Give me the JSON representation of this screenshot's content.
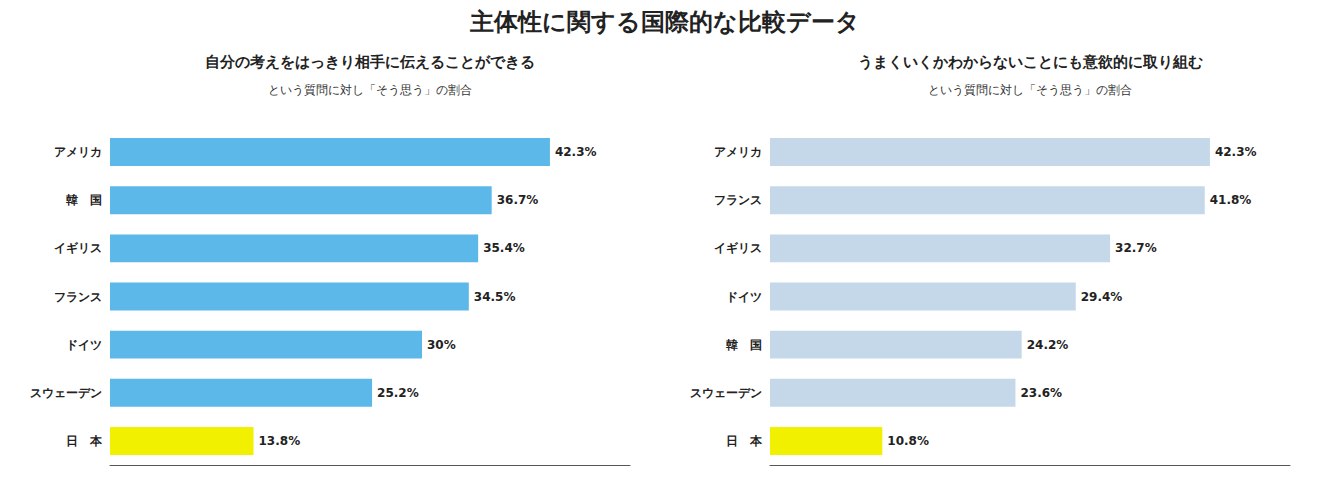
{
  "title": "主体性に関する国際的な比較データ",
  "chart_data": [
    {
      "type": "bar",
      "orientation": "horizontal",
      "title": "自分の考えをはっきり相手に伝えることができる",
      "subtitle": "という質問に対し「そう思う」の割合",
      "categories": [
        "アメリカ",
        "韓　国",
        "イギリス",
        "フランス",
        "ドイツ",
        "スウェーデン",
        "日　本"
      ],
      "values": [
        42.3,
        36.7,
        35.4,
        34.5,
        30.0,
        25.2,
        13.8
      ],
      "value_labels": [
        "42.3%",
        "36.7%",
        "35.4%",
        "34.5%",
        "30%",
        "25.2%",
        "13.8%"
      ],
      "colors": [
        "#5bb8e8",
        "#5bb8e8",
        "#5bb8e8",
        "#5bb8e8",
        "#5bb8e8",
        "#5bb8e8",
        "#f0f000"
      ],
      "data_labels": true,
      "xlim": [
        0,
        50
      ],
      "xticks": [],
      "tick_labels": "y",
      "grid": false
    },
    {
      "type": "bar",
      "orientation": "horizontal",
      "title": "うまくいくかわからないことにも意欲的に取り組む",
      "subtitle": "という質問に対し「そう思う」の割合",
      "categories": [
        "アメリカ",
        "フランス",
        "イギリス",
        "ドイツ",
        "韓　国",
        "スウェーデン",
        "日　本"
      ],
      "values": [
        42.3,
        41.8,
        32.7,
        29.4,
        24.2,
        23.6,
        10.8
      ],
      "value_labels": [
        "42.3%",
        "41.8%",
        "32.7%",
        "29.4%",
        "24.2%",
        "23.6%",
        "10.8%"
      ],
      "colors": [
        "#c5d8ea",
        "#c5d8ea",
        "#c5d8ea",
        "#c5d8ea",
        "#c5d8ea",
        "#c5d8ea",
        "#f0f000"
      ],
      "data_labels": true,
      "xlim": [
        0,
        50
      ],
      "xticks": [],
      "tick_labels": "y",
      "grid": false
    }
  ]
}
